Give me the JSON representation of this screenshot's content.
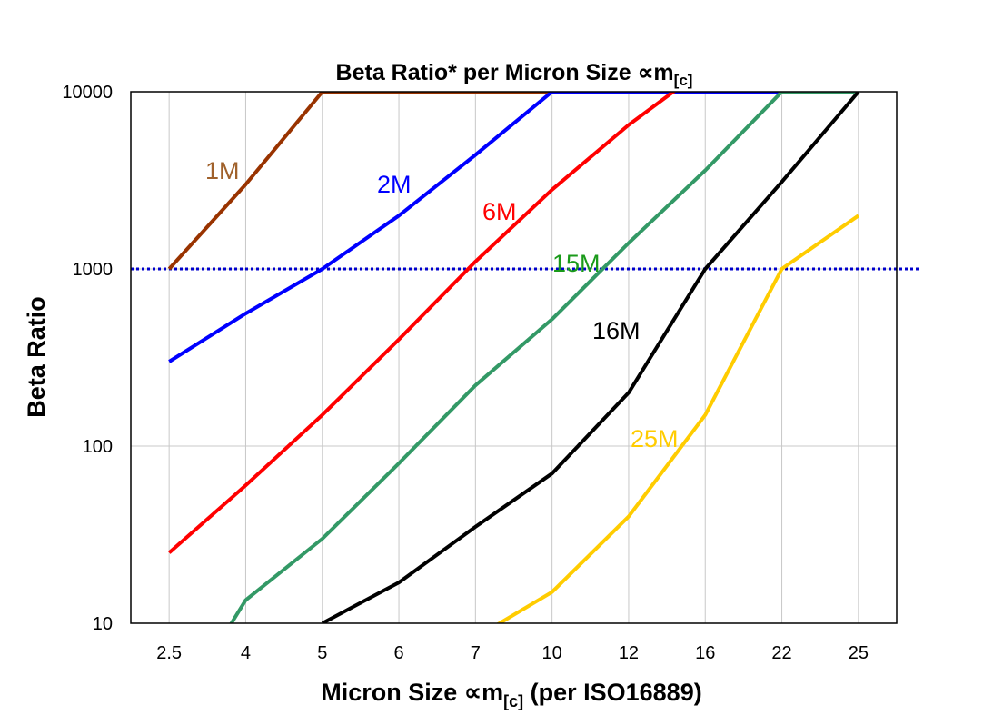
{
  "chart_data": {
    "type": "line",
    "title": "Beta Ratio* per Micron Size ∝m",
    "title_subscript": "[c]",
    "xlabel": "Micron Size ∝m",
    "xlabel_subscript": "[c]",
    "xlabel_suffix": " (per ISO16889)",
    "ylabel": "Beta Ratio",
    "categories": [
      "2.5",
      "4",
      "5",
      "6",
      "7",
      "10",
      "12",
      "16",
      "22",
      "25"
    ],
    "y_scale": "log",
    "ylim": [
      10,
      10000
    ],
    "y_ticks": [
      "10",
      "100",
      "1000",
      "10000"
    ],
    "grid": true,
    "reference_line": {
      "value": 1000,
      "style": "dotted",
      "color": "#0000CC"
    },
    "series": [
      {
        "name": "1M",
        "color": "#993300",
        "label_color": "#A0612B",
        "values": [
          1000,
          3000,
          10000,
          10000,
          10000,
          10000,
          10000,
          10000,
          10000,
          10000
        ]
      },
      {
        "name": "2M",
        "color": "#0000FF",
        "label_color": "#0000FF",
        "values": [
          300,
          560,
          1000,
          2000,
          4400,
          10000,
          10000,
          10000,
          10000,
          10000
        ]
      },
      {
        "name": "6M",
        "color": "#FF0000",
        "label_color": "#FF0000",
        "values": [
          25,
          60,
          150,
          400,
          1100,
          2800,
          6500,
          13600,
          null,
          null
        ]
      },
      {
        "name": "15M",
        "color": "#339966",
        "label_color": "#1A9A1A",
        "values": [
          2.7,
          13.5,
          30,
          80,
          220,
          520,
          1400,
          3600,
          10000,
          10000
        ]
      },
      {
        "name": "16M",
        "color": "#000000",
        "label_color": "#000000",
        "values": [
          null,
          null,
          10,
          17,
          35,
          70,
          200,
          1000,
          3100,
          10000
        ]
      },
      {
        "name": "25M",
        "color": "#FFCC00",
        "label_color": "#FFCC00",
        "values": [
          null,
          null,
          null,
          null,
          8.3,
          15,
          40,
          150,
          1000,
          2000
        ]
      }
    ]
  }
}
